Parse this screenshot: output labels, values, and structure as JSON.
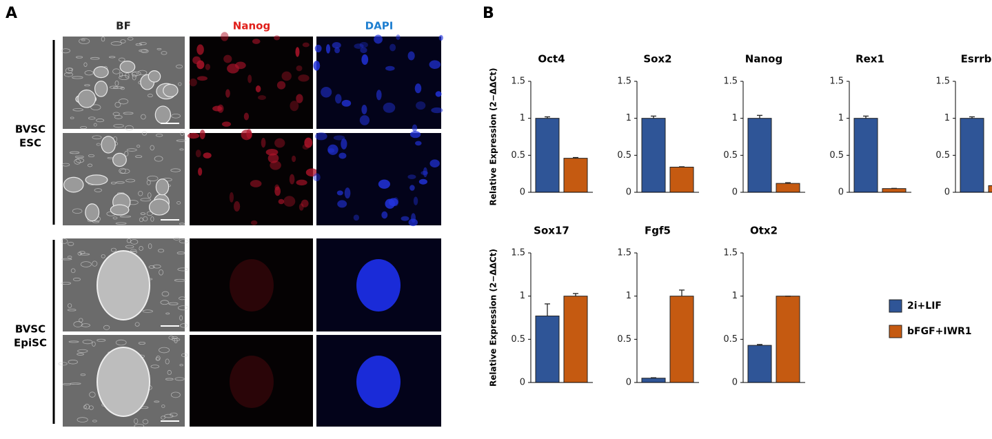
{
  "panel_a": {
    "label": "A",
    "columns": [
      "BF",
      "Nanog",
      "DAPI"
    ],
    "rows": [
      [
        "BVSC",
        "ESC"
      ],
      [
        "BVSC",
        "EpiSC"
      ]
    ]
  },
  "panel_b": {
    "label": "B"
  },
  "chart_data": [
    {
      "type": "bar",
      "title": "Oct4",
      "ylabel": "Relative Expression (2−ΔΔCt)",
      "ylim": [
        0,
        1.5
      ],
      "yticks": [
        0,
        0.5,
        1,
        1.5
      ],
      "series": [
        {
          "name": "2i+LIF",
          "color": "#2f5597",
          "values": [
            1.0
          ],
          "errors": [
            0.02
          ]
        },
        {
          "name": "bFGF+IWR1",
          "color": "#c55a11",
          "values": [
            0.46
          ],
          "errors": [
            0.01
          ]
        }
      ]
    },
    {
      "type": "bar",
      "title": "Sox2",
      "ylim": [
        0,
        1.5
      ],
      "yticks": [
        0,
        0.5,
        1,
        1.5
      ],
      "series": [
        {
          "name": "2i+LIF",
          "color": "#2f5597",
          "values": [
            1.0
          ],
          "errors": [
            0.03
          ]
        },
        {
          "name": "bFGF+IWR1",
          "color": "#c55a11",
          "values": [
            0.34
          ],
          "errors": [
            0.005
          ]
        }
      ]
    },
    {
      "type": "bar",
      "title": "Nanog",
      "ylim": [
        0,
        1.5
      ],
      "yticks": [
        0,
        0.5,
        1,
        1.5
      ],
      "series": [
        {
          "name": "2i+LIF",
          "color": "#2f5597",
          "values": [
            1.0
          ],
          "errors": [
            0.04
          ]
        },
        {
          "name": "bFGF+IWR1",
          "color": "#c55a11",
          "values": [
            0.12
          ],
          "errors": [
            0.01
          ]
        }
      ]
    },
    {
      "type": "bar",
      "title": "Rex1",
      "ylim": [
        0,
        1.5
      ],
      "yticks": [
        0,
        0.5,
        1,
        1.5
      ],
      "series": [
        {
          "name": "2i+LIF",
          "color": "#2f5597",
          "values": [
            1.0
          ],
          "errors": [
            0.03
          ]
        },
        {
          "name": "bFGF+IWR1",
          "color": "#c55a11",
          "values": [
            0.05
          ],
          "errors": [
            0.003
          ]
        }
      ]
    },
    {
      "type": "bar",
      "title": "Esrrb",
      "ylim": [
        0,
        1.5
      ],
      "yticks": [
        0,
        0.5,
        1,
        1.5
      ],
      "series": [
        {
          "name": "2i+LIF",
          "color": "#2f5597",
          "values": [
            1.0
          ],
          "errors": [
            0.02
          ]
        },
        {
          "name": "bFGF+IWR1",
          "color": "#c55a11",
          "values": [
            0.09
          ],
          "errors": [
            0.004
          ]
        }
      ]
    },
    {
      "type": "bar",
      "title": "Sox17",
      "ylabel": "Relative Expression (2−ΔΔCt)",
      "ylim": [
        0,
        1.5
      ],
      "yticks": [
        0,
        0.5,
        1,
        1.5
      ],
      "series": [
        {
          "name": "2i+LIF",
          "color": "#2f5597",
          "values": [
            0.77
          ],
          "errors": [
            0.14
          ]
        },
        {
          "name": "bFGF+IWR1",
          "color": "#c55a11",
          "values": [
            1.0
          ],
          "errors": [
            0.03
          ]
        }
      ]
    },
    {
      "type": "bar",
      "title": "Fgf5",
      "ylim": [
        0,
        1.5
      ],
      "yticks": [
        0,
        0.5,
        1,
        1.5
      ],
      "series": [
        {
          "name": "2i+LIF",
          "color": "#2f5597",
          "values": [
            0.05
          ],
          "errors": [
            0.005
          ]
        },
        {
          "name": "bFGF+IWR1",
          "color": "#c55a11",
          "values": [
            1.0
          ],
          "errors": [
            0.07
          ]
        }
      ]
    },
    {
      "type": "bar",
      "title": "Otx2",
      "ylim": [
        0,
        1.5
      ],
      "yticks": [
        0,
        0.5,
        1,
        1.5
      ],
      "series": [
        {
          "name": "2i+LIF",
          "color": "#2f5597",
          "values": [
            0.43
          ],
          "errors": [
            0.01
          ]
        },
        {
          "name": "bFGF+IWR1",
          "color": "#c55a11",
          "values": [
            1.0
          ],
          "errors": [
            0.0
          ]
        }
      ]
    }
  ]
}
